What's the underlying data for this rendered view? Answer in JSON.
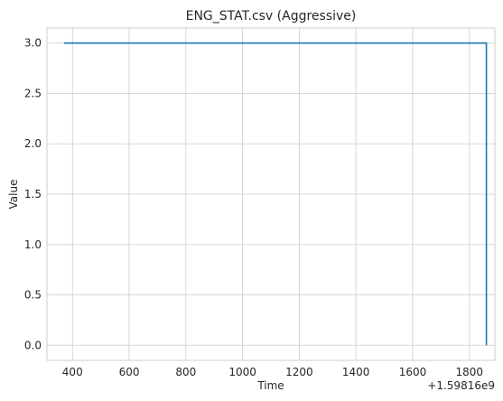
{
  "chart_data": {
    "type": "line",
    "title": "ENG_STAT.csv (Aggressive)",
    "xlabel": "Time",
    "ylabel": "Value",
    "x_offset_label": "+1.59816e9",
    "xlim": [
      310,
      1890
    ],
    "ylim": [
      -0.15,
      3.15
    ],
    "x_ticks": [
      400,
      600,
      800,
      1000,
      1200,
      1400,
      1600,
      1800
    ],
    "y_ticks": [
      0.0,
      0.5,
      1.0,
      1.5,
      2.0,
      2.5,
      3.0
    ],
    "x_tick_labels": [
      "400",
      "600",
      "800",
      "1000",
      "1200",
      "1400",
      "1600",
      "1800"
    ],
    "y_tick_labels": [
      "0.0",
      "0.5",
      "1.0",
      "1.5",
      "2.0",
      "2.5",
      "3.0"
    ],
    "grid": true,
    "series": [
      {
        "color": "#1f77b4",
        "x": [
          370,
          1860,
          1860,
          1860
        ],
        "y": [
          3.0,
          3.0,
          1.5,
          0.0
        ]
      }
    ]
  }
}
